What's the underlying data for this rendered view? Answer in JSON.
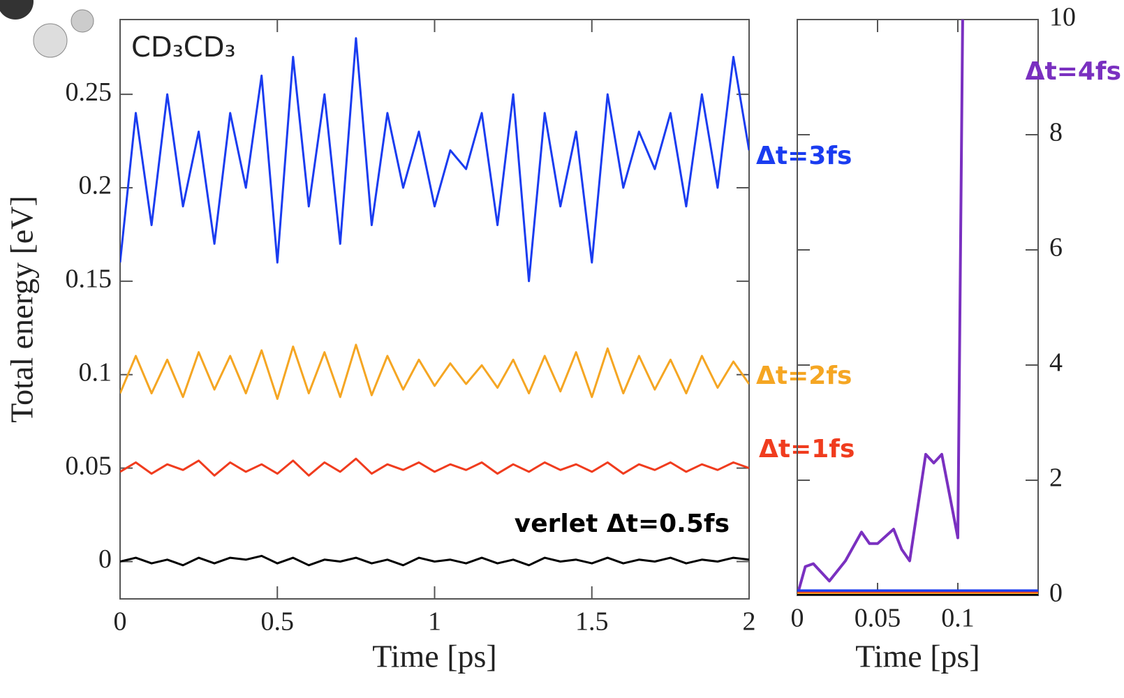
{
  "chart_data": [
    {
      "type": "line",
      "xlabel": "Time [ps]",
      "ylabel": "Total energy [eV]",
      "annotations": [
        "CD₃CD₃"
      ],
      "x": [
        0,
        0.05,
        0.1,
        0.15,
        0.2,
        0.25,
        0.3,
        0.35,
        0.4,
        0.45,
        0.5,
        0.55,
        0.6,
        0.65,
        0.7,
        0.75,
        0.8,
        0.85,
        0.9,
        0.95,
        1,
        1.05,
        1.1,
        1.15,
        1.2,
        1.25,
        1.3,
        1.35,
        1.4,
        1.45,
        1.5,
        1.55,
        1.6,
        1.65,
        1.7,
        1.75,
        1.8,
        1.85,
        1.9,
        1.95,
        2
      ],
      "xlim": [
        0,
        2
      ],
      "xticks": [
        0,
        0.5,
        1,
        1.5,
        2
      ],
      "ylim": [
        -0.02,
        0.29
      ],
      "yticks": [
        0,
        0.05,
        0.1,
        0.15,
        0.2,
        0.25
      ],
      "series": [
        {
          "name": "Δt=3fs",
          "color": "#1a3cf0",
          "values": [
            0.16,
            0.24,
            0.18,
            0.25,
            0.19,
            0.23,
            0.17,
            0.24,
            0.2,
            0.26,
            0.16,
            0.27,
            0.19,
            0.25,
            0.17,
            0.28,
            0.18,
            0.24,
            0.2,
            0.23,
            0.19,
            0.22,
            0.21,
            0.24,
            0.18,
            0.25,
            0.15,
            0.24,
            0.19,
            0.23,
            0.16,
            0.25,
            0.2,
            0.23,
            0.21,
            0.24,
            0.19,
            0.25,
            0.2,
            0.27,
            0.22
          ]
        },
        {
          "name": "Δt=2fs",
          "color": "#f5a623",
          "values": [
            0.09,
            0.11,
            0.09,
            0.108,
            0.088,
            0.112,
            0.092,
            0.11,
            0.09,
            0.113,
            0.087,
            0.115,
            0.09,
            0.112,
            0.088,
            0.116,
            0.089,
            0.11,
            0.092,
            0.108,
            0.094,
            0.106,
            0.095,
            0.105,
            0.093,
            0.108,
            0.09,
            0.11,
            0.091,
            0.112,
            0.088,
            0.114,
            0.09,
            0.11,
            0.092,
            0.108,
            0.09,
            0.11,
            0.093,
            0.107,
            0.095
          ]
        },
        {
          "name": "Δt=1fs",
          "color": "#f03c1e",
          "values": [
            0.048,
            0.053,
            0.047,
            0.052,
            0.049,
            0.054,
            0.046,
            0.053,
            0.048,
            0.052,
            0.047,
            0.054,
            0.046,
            0.053,
            0.048,
            0.055,
            0.047,
            0.052,
            0.049,
            0.053,
            0.048,
            0.052,
            0.049,
            0.053,
            0.047,
            0.052,
            0.048,
            0.053,
            0.049,
            0.052,
            0.048,
            0.053,
            0.047,
            0.052,
            0.049,
            0.053,
            0.048,
            0.052,
            0.049,
            0.053,
            0.05
          ]
        },
        {
          "name": "verlet Δt=0.5fs",
          "color": "#000000",
          "values": [
            0,
            0.002,
            -0.001,
            0.001,
            -0.002,
            0.002,
            -0.001,
            0.002,
            0.001,
            0.003,
            -0.001,
            0.002,
            -0.002,
            0.001,
            0,
            0.002,
            -0.001,
            0.001,
            -0.002,
            0.002,
            0,
            0.001,
            -0.001,
            0.002,
            -0.001,
            0.001,
            -0.002,
            0.002,
            0,
            0.001,
            -0.001,
            0.002,
            -0.001,
            0.001,
            0,
            0.002,
            -0.001,
            0.001,
            0,
            0.002,
            0.001
          ]
        }
      ]
    },
    {
      "type": "line",
      "xlabel": "Time [ps]",
      "yaxis_side": "right",
      "xlim": [
        0,
        0.15
      ],
      "xticks": [
        0,
        0.05,
        0.1
      ],
      "ylim": [
        0,
        10
      ],
      "yticks": [
        0,
        2,
        4,
        6,
        8,
        10
      ],
      "series": [
        {
          "name": "Δt=4fs",
          "color": "#7a30c0",
          "x": [
            0,
            0.005,
            0.01,
            0.02,
            0.03,
            0.04,
            0.045,
            0.05,
            0.06,
            0.065,
            0.07,
            0.08,
            0.085,
            0.09,
            0.1,
            0.103
          ],
          "values": [
            0,
            0.5,
            0.55,
            0.25,
            0.6,
            1.1,
            0.9,
            0.9,
            1.15,
            0.8,
            0.6,
            2.45,
            2.3,
            2.45,
            1,
            10
          ]
        },
        {
          "color": "#1a3cf0",
          "x": [
            0,
            0.15
          ],
          "values": [
            0.08,
            0.08
          ]
        },
        {
          "color": "#f03c1e",
          "x": [
            0,
            0.15
          ],
          "values": [
            0.04,
            0.04
          ]
        },
        {
          "color": "#f5a623",
          "x": [
            0,
            0.15
          ],
          "values": [
            0.02,
            0.02
          ]
        },
        {
          "color": "#000000",
          "x": [
            0,
            0.15
          ],
          "values": [
            0,
            0
          ]
        }
      ]
    }
  ]
}
